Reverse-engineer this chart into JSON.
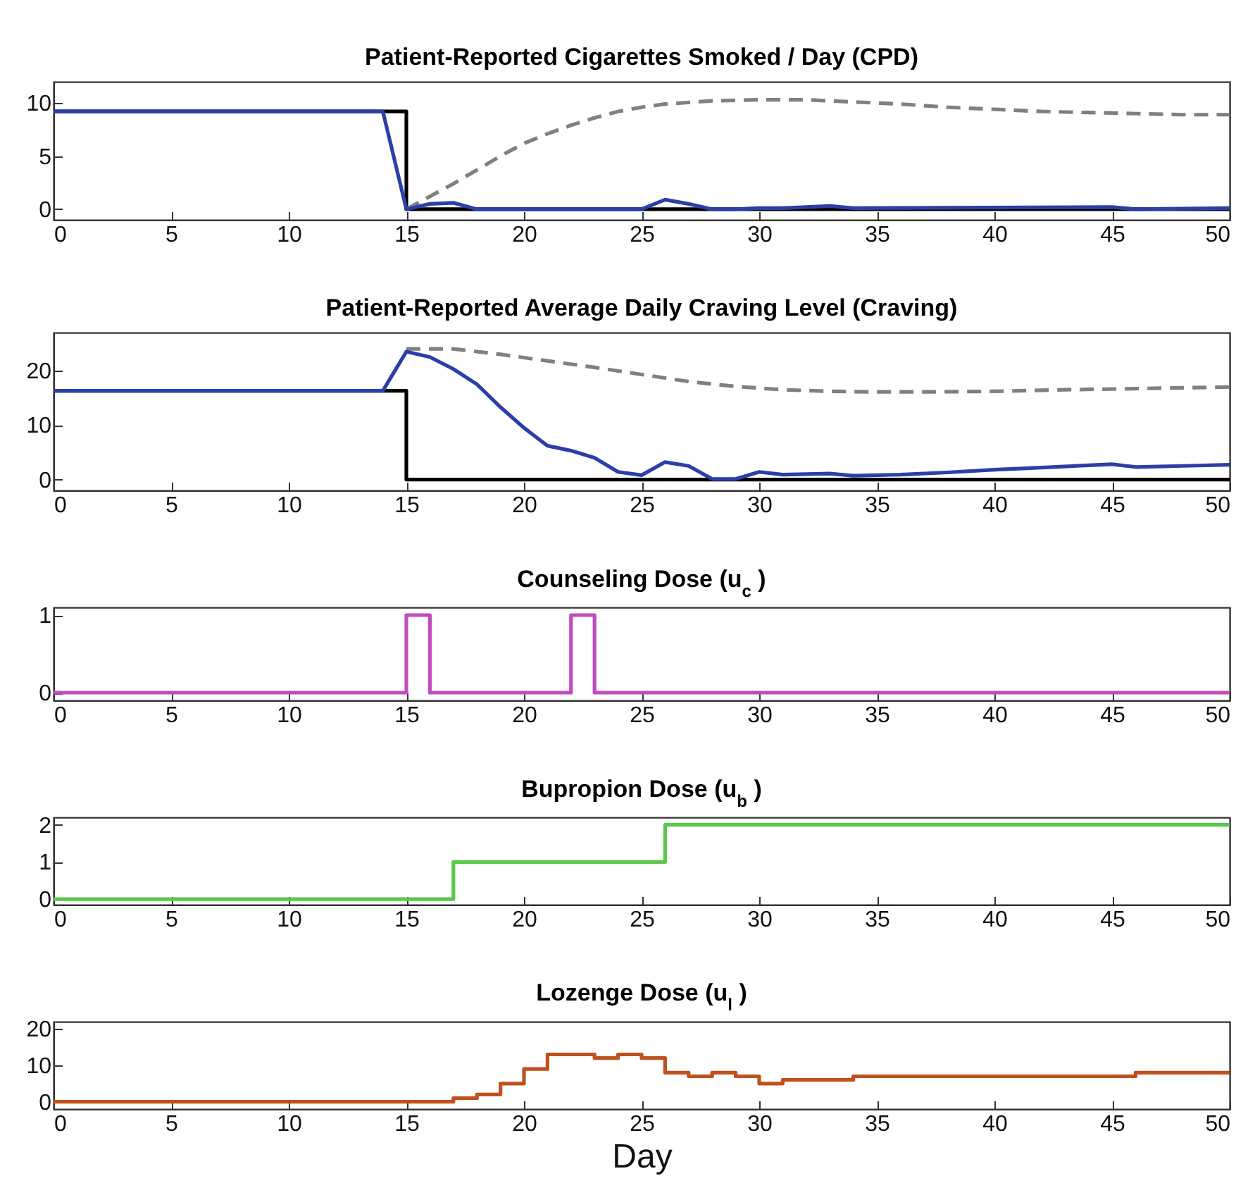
{
  "chart_data": [
    {
      "type": "line",
      "title": "Patient-Reported Cigarettes Smoked / Day (CPD)",
      "xlim": [
        0,
        50
      ],
      "xticks": [
        0,
        5,
        10,
        15,
        20,
        25,
        30,
        35,
        40,
        45,
        50
      ],
      "ylim": [
        -1,
        12
      ],
      "yticks": [
        0,
        5,
        10
      ],
      "grid": false,
      "series": [
        {
          "color": "#000000",
          "x": [
            0,
            15,
            15,
            50
          ],
          "values": [
            9.2,
            9.2,
            0,
            0
          ]
        },
        {
          "color": "#808080",
          "line_style": "dashed",
          "x": [
            15,
            16,
            17,
            18,
            19,
            20,
            21,
            22,
            23,
            24,
            25,
            26,
            28,
            30,
            32,
            34,
            36,
            38,
            40,
            42,
            44,
            46,
            48,
            50
          ],
          "values": [
            0,
            1.2,
            2.4,
            3.7,
            5,
            6.2,
            7.1,
            7.9,
            8.6,
            9.2,
            9.6,
            9.9,
            10.2,
            10.3,
            10.3,
            10.1,
            9.9,
            9.6,
            9.4,
            9.2,
            9.1,
            9,
            8.9,
            8.9
          ]
        },
        {
          "color": "#2b3fa8",
          "x": [
            0,
            14,
            15,
            16,
            17,
            18,
            25,
            26,
            27,
            28,
            29,
            30,
            31,
            32,
            33,
            34,
            45,
            46,
            50
          ],
          "values": [
            9.2,
            9.2,
            0,
            0.5,
            0.6,
            0,
            0,
            0.9,
            0.5,
            0,
            0,
            0.1,
            0.1,
            0.2,
            0.3,
            0.1,
            0.2,
            0,
            0.1
          ]
        }
      ]
    },
    {
      "type": "line",
      "title": "Patient-Reported Average Daily Craving Level (Craving)",
      "xlim": [
        0,
        50
      ],
      "xticks": [
        0,
        5,
        10,
        15,
        20,
        25,
        30,
        35,
        40,
        45,
        50
      ],
      "ylim": [
        -2,
        27
      ],
      "yticks": [
        0,
        10,
        20
      ],
      "grid": false,
      "series": [
        {
          "color": "#000000",
          "x": [
            0,
            15,
            15,
            50
          ],
          "values": [
            16.3,
            16.3,
            0,
            0
          ]
        },
        {
          "color": "#808080",
          "line_style": "dashed",
          "x": [
            15,
            17,
            19,
            21,
            23,
            25,
            27,
            29,
            31,
            33,
            35,
            37,
            40,
            43,
            46,
            50
          ],
          "values": [
            24,
            24,
            23,
            21.8,
            20.6,
            19.3,
            18,
            17.1,
            16.5,
            16.2,
            16.1,
            16.1,
            16.2,
            16.5,
            16.7,
            17
          ]
        },
        {
          "color": "#2b3fa8",
          "x": [
            0,
            14,
            15,
            16,
            17,
            18,
            19,
            20,
            21,
            22,
            23,
            24,
            25,
            26,
            27,
            28,
            29,
            30,
            31,
            32,
            33,
            34,
            35,
            36,
            38,
            40,
            42,
            44,
            45,
            46,
            48,
            50
          ],
          "values": [
            16.3,
            16.3,
            23.5,
            22.5,
            20.3,
            17.5,
            13.3,
            9.5,
            6.2,
            5.3,
            4,
            1.4,
            0.8,
            3.2,
            2.5,
            0.1,
            0.1,
            1.4,
            0.9,
            1,
            1.1,
            0.7,
            0.8,
            0.9,
            1.3,
            1.8,
            2.2,
            2.6,
            2.8,
            2.3,
            2.5,
            2.7
          ]
        }
      ]
    },
    {
      "type": "step",
      "title": "Counseling Dose  (u$_{c}$ )",
      "xlim": [
        0,
        50
      ],
      "xticks": [
        0,
        5,
        10,
        15,
        20,
        25,
        30,
        35,
        40,
        45,
        50
      ],
      "ylim": [
        -0.1,
        1.1
      ],
      "yticks": [
        0,
        1
      ],
      "grid": false,
      "series": [
        {
          "color": "#c04cbf",
          "x": [
            0,
            15,
            16,
            22,
            23,
            50
          ],
          "values": [
            0,
            1,
            0,
            1,
            0,
            0
          ]
        }
      ]
    },
    {
      "type": "step",
      "title": "Bupropion Dose (u$_{b}$ )",
      "xlim": [
        0,
        50
      ],
      "xticks": [
        0,
        5,
        10,
        15,
        20,
        25,
        30,
        35,
        40,
        45,
        50
      ],
      "ylim": [
        -0.15,
        2.2
      ],
      "yticks": [
        0,
        1,
        2
      ],
      "grid": false,
      "series": [
        {
          "color": "#5ac84a",
          "x": [
            0,
            17,
            26,
            50
          ],
          "values": [
            0,
            1,
            2,
            2
          ]
        }
      ]
    },
    {
      "type": "step",
      "title": "Lozenge Dose (u$_{l}$ )",
      "xlabel": "Day",
      "xlim": [
        0,
        50
      ],
      "xticks": [
        0,
        5,
        10,
        15,
        20,
        25,
        30,
        35,
        40,
        45,
        50
      ],
      "ylim": [
        -2,
        22
      ],
      "yticks": [
        0,
        10,
        20
      ],
      "grid": false,
      "series": [
        {
          "color": "#c0501e",
          "x": [
            0,
            17,
            18,
            19,
            20,
            21,
            23,
            24,
            25,
            26,
            27,
            28,
            29,
            30,
            31,
            34,
            46,
            50
          ],
          "values": [
            0,
            1,
            2,
            5,
            9,
            13,
            12,
            13,
            12,
            8,
            7,
            8,
            7,
            5,
            6,
            7,
            8,
            8
          ]
        }
      ]
    }
  ]
}
